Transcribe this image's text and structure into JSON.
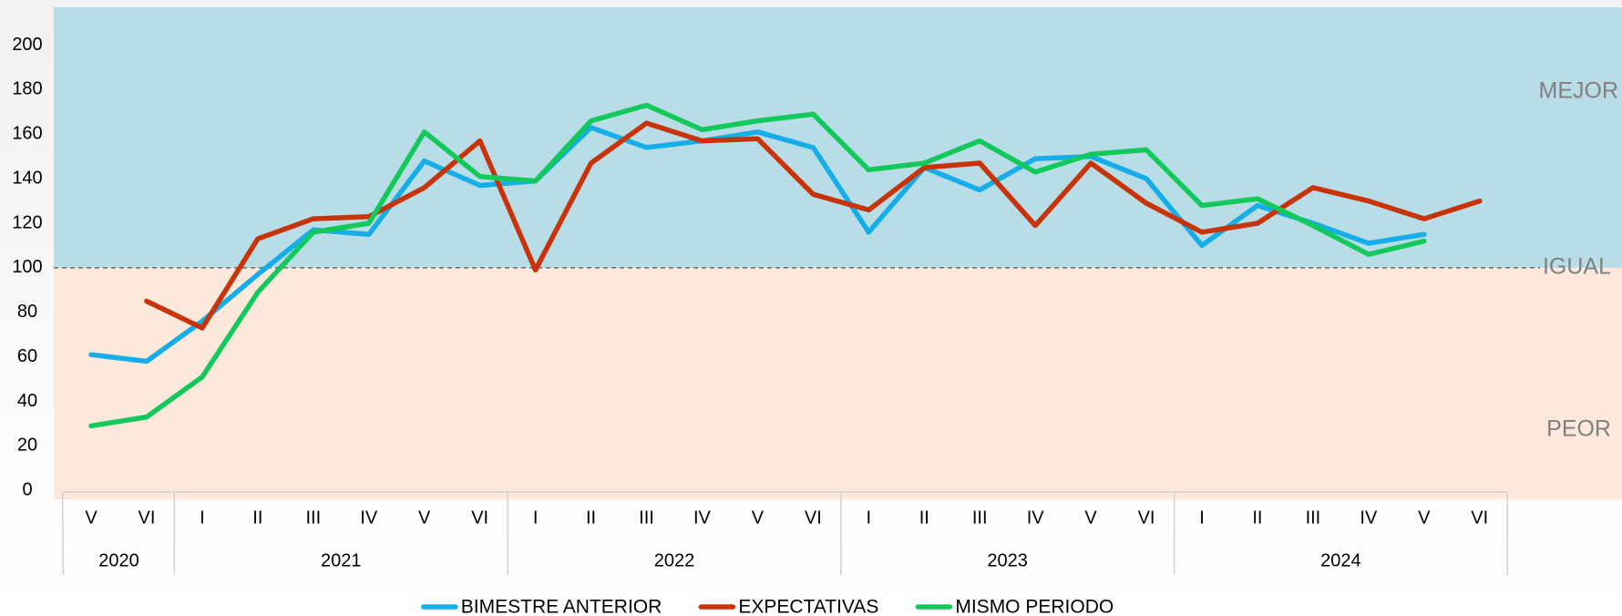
{
  "chart_data": {
    "type": "line",
    "groups": [
      {
        "label": "2020",
        "categories": [
          "V",
          "VI"
        ]
      },
      {
        "label": "2021",
        "categories": [
          "I",
          "II",
          "III",
          "IV",
          "V",
          "VI"
        ]
      },
      {
        "label": "2022",
        "categories": [
          "I",
          "II",
          "III",
          "IV",
          "V",
          "VI"
        ]
      },
      {
        "label": "2023",
        "categories": [
          "I",
          "II",
          "III",
          "IV",
          "V",
          "VI"
        ]
      },
      {
        "label": "2024",
        "categories": [
          "I",
          "II",
          "III",
          "IV",
          "V",
          "VI"
        ]
      }
    ],
    "series": [
      {
        "name": "BIMESTRE ANTERIOR",
        "color": "#16aee8",
        "values": [
          61,
          58,
          76,
          97,
          117,
          115,
          148,
          137,
          139,
          163,
          154,
          157,
          161,
          154,
          116,
          145,
          135,
          149,
          150,
          140,
          110,
          128,
          120,
          111,
          115,
          null
        ]
      },
      {
        "name": "EXPECTATIVAS",
        "color": "#c8330a",
        "values": [
          null,
          85,
          73,
          113,
          122,
          123,
          136,
          157,
          99,
          147,
          165,
          157,
          158,
          133,
          126,
          145,
          147,
          119,
          147,
          129,
          116,
          120,
          136,
          130,
          122,
          130
        ]
      },
      {
        "name": "MISMO PERIODO",
        "color": "#14c95c",
        "values": [
          29,
          33,
          51,
          89,
          116,
          120,
          161,
          141,
          139,
          166,
          173,
          162,
          166,
          169,
          144,
          147,
          157,
          143,
          151,
          153,
          128,
          131,
          119,
          106,
          112,
          null
        ]
      }
    ],
    "ylim": [
      -4,
      217
    ],
    "yticks": [
      0,
      20,
      40,
      60,
      80,
      100,
      120,
      140,
      160,
      180,
      200
    ],
    "reference_line": 100,
    "zones": [
      {
        "label": "MEJOR",
        "color": "#b8dde6"
      },
      {
        "label": "IGUAL"
      },
      {
        "label": "PEOR",
        "color": "#fde9dc"
      }
    ],
    "legend": "bottom"
  }
}
